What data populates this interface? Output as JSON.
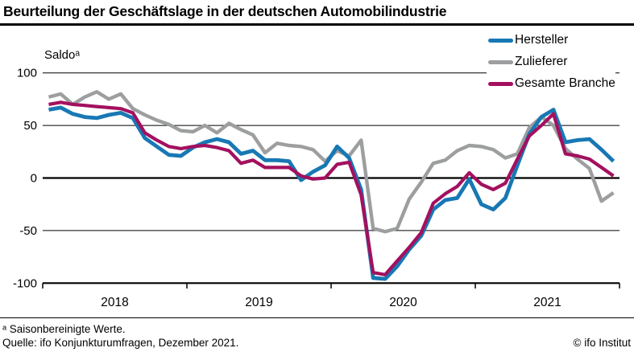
{
  "title": "Beurteilung der Geschäftslage in der deutschen Automobilindustrie",
  "footer": {
    "footnote": "ᵃ Saisonbereinigte Werte.",
    "source": "Quelle: ifo Konjunkturumfragen, Dezember 2021.",
    "copyright": "© ifo Institut"
  },
  "chart_data": {
    "type": "line",
    "unit_label": "Saldoᵃ",
    "x_frequency": "monthly",
    "x_start": "2018-01",
    "x_end": "2021-12",
    "year_labels": [
      "2018",
      "2019",
      "2020",
      "2021"
    ],
    "yticks": [
      100,
      50,
      0,
      -50,
      -100
    ],
    "ylim": [
      -100,
      100
    ],
    "grid": "horizontal",
    "legend_position": "top-right",
    "axis_color": "#000000",
    "series": [
      {
        "name": "Hersteller",
        "color": "#1878b4",
        "values": [
          65,
          67,
          61,
          58,
          57,
          60,
          62,
          57,
          38,
          30,
          22,
          21,
          29,
          34,
          37,
          34,
          23,
          26,
          17,
          17,
          16,
          -2,
          6,
          12,
          30,
          19,
          -11,
          -95,
          -96,
          -84,
          -68,
          -55,
          -30,
          -21,
          -19,
          -1,
          -25,
          -30,
          -19,
          12,
          42,
          58,
          65,
          34,
          36,
          37,
          27,
          16
        ]
      },
      {
        "name": "Zulieferer",
        "color": "#9c9e9f",
        "values": [
          77,
          80,
          70,
          77,
          82,
          75,
          80,
          66,
          60,
          55,
          51,
          45,
          44,
          50,
          43,
          52,
          46,
          41,
          24,
          33,
          31,
          30,
          27,
          16,
          26,
          21,
          36,
          -48,
          -51,
          -48,
          -20,
          -4,
          14,
          17,
          26,
          31,
          30,
          27,
          19,
          23,
          48,
          58,
          50,
          28,
          18,
          9,
          -22,
          -14
        ]
      },
      {
        "name": "Gesamte Branche",
        "color": "#a3105f",
        "values": [
          70,
          72,
          70,
          69,
          68,
          67,
          66,
          62,
          43,
          36,
          30,
          28,
          30,
          31,
          29,
          26,
          14,
          17,
          10,
          10,
          10,
          2,
          -1,
          0,
          13,
          15,
          -16,
          -90,
          -92,
          -79,
          -66,
          -52,
          -24,
          -15,
          -8,
          5,
          -6,
          -11,
          -5,
          18,
          40,
          50,
          61,
          23,
          21,
          18,
          10,
          2
        ]
      }
    ]
  }
}
